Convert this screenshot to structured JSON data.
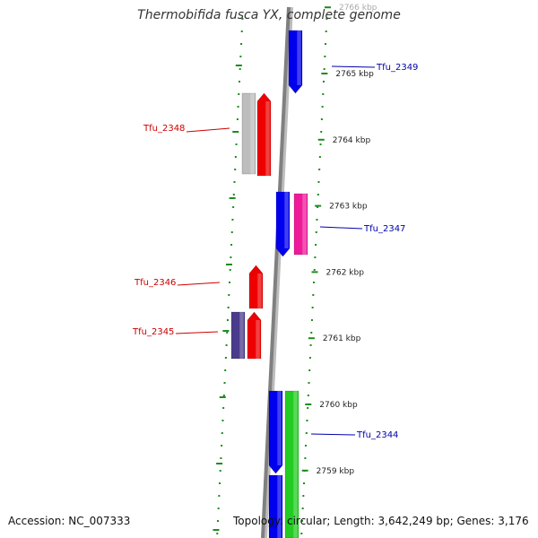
{
  "title": "Thermobifida fusca YX, complete genome",
  "accession": "Accession: NC_007333",
  "topology": "Topology: circular; Length: 3,642,249 bp; Genes: 3,176",
  "colors": {
    "backbone": "#808080",
    "tick": "#1e8c1e",
    "kbp_text": "#222222",
    "label_red": "#cc0000",
    "label_blue": "#0000aa"
  },
  "kbp_ticks": [
    {
      "label": "2766 kbp",
      "kbp": 2766
    },
    {
      "label": "2765 kbp",
      "kbp": 2765
    },
    {
      "label": "2764 kbp",
      "kbp": 2764
    },
    {
      "label": "2763 kbp",
      "kbp": 2763
    },
    {
      "label": "2762 kbp",
      "kbp": 2762
    },
    {
      "label": "2761 kbp",
      "kbp": 2761
    },
    {
      "label": "2760 kbp",
      "kbp": 2760
    },
    {
      "label": "2759 kbp",
      "kbp": 2759
    }
  ],
  "genes": [
    {
      "id": "Tfu_2349",
      "label": "Tfu_2349",
      "side": "outer",
      "color": "#0000ee",
      "dir": "down"
    },
    {
      "id": "Tfu_2348",
      "label": "Tfu_2348",
      "side": "inner",
      "color": "#ee0000",
      "dir": "up",
      "partner_color": "#bdbdbd"
    },
    {
      "id": "Tfu_2347",
      "label": "Tfu_2347",
      "side": "outer",
      "color": "#0000ee",
      "dir": "down",
      "partner_color": "#ee1a9a"
    },
    {
      "id": "Tfu_2346",
      "label": "Tfu_2346",
      "side": "inner",
      "color": "#ee0000",
      "dir": "up"
    },
    {
      "id": "Tfu_2345",
      "label": "Tfu_2345",
      "side": "inner",
      "color": "#ee0000",
      "dir": "up",
      "partner_color": "#4a3b8c"
    },
    {
      "id": "Tfu_2344",
      "label": "Tfu_2344",
      "side": "outer",
      "color": "#0000ee",
      "dir": "down",
      "partner_color": "#22cc22"
    }
  ]
}
